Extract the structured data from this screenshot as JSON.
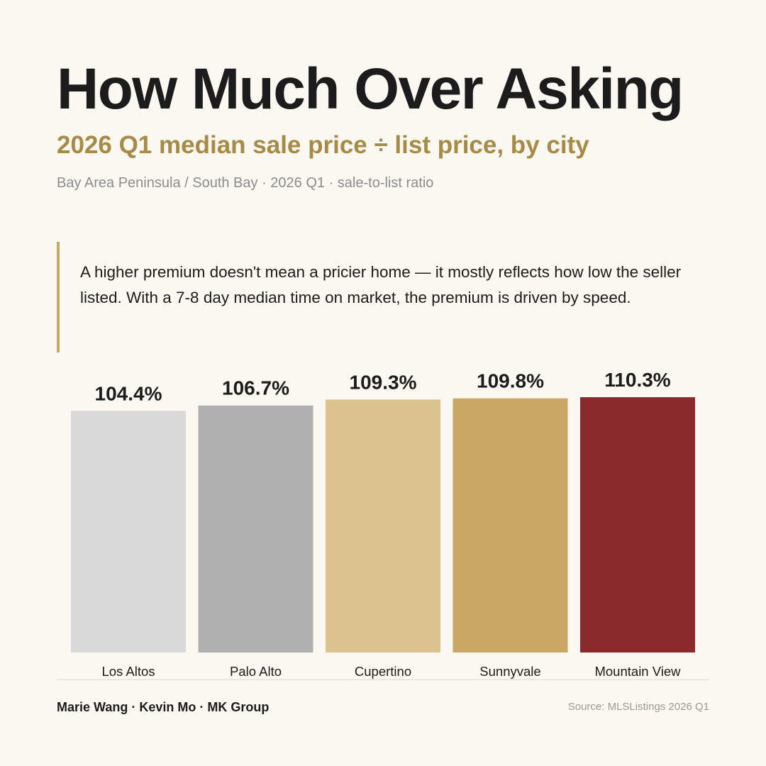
{
  "header": {
    "title": "How Much Over Asking",
    "subtitle": "2026 Q1 median sale price ÷ list price, by city",
    "meta": "Bay Area Peninsula / South Bay · 2026 Q1 · sale-to-list ratio"
  },
  "note": {
    "text": "A higher premium doesn't mean a pricier home — it mostly reflects how low the seller listed. With a 7-8 day median time on market, the premium is driven by speed."
  },
  "chart_data": {
    "type": "bar",
    "categories": [
      "Los Altos",
      "Palo Alto",
      "Cupertino",
      "Sunnyvale",
      "Mountain View"
    ],
    "values": [
      104.4,
      106.7,
      109.3,
      109.8,
      110.3
    ],
    "value_labels": [
      "104.4%",
      "106.7%",
      "109.3%",
      "109.8%",
      "110.3%"
    ],
    "bar_colors": [
      "#d9d9d9",
      "#b0b0b0",
      "#dcc28f",
      "#c9a765",
      "#8a2a2d"
    ],
    "ylim": [
      0,
      110.3
    ],
    "grid": false,
    "legend": "none"
  },
  "footer": {
    "credit": "Marie Wang · Kevin Mo · MK Group",
    "source": "Source: MLSListings 2026 Q1"
  },
  "colors": {
    "background": "#fbf8f1",
    "title": "#1c1c1c",
    "subtitle": "#a68a45",
    "meta": "#8c8c8c",
    "note_border": "#c8a865"
  }
}
